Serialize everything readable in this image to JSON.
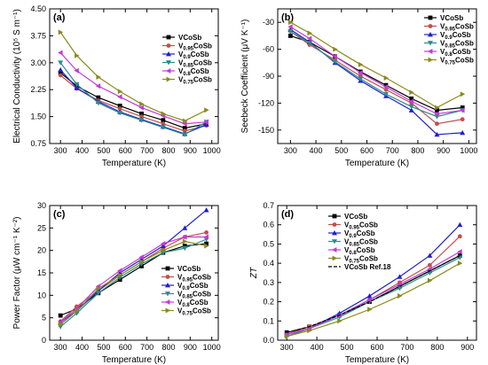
{
  "figure_panels": [
    {
      "key": "a",
      "type": "line",
      "panel_label": "(a)",
      "xlabel": "Temperature (K)",
      "ylabel": "Electrical Conductivity (10⁵ S m⁻¹)",
      "xlim": [
        250,
        1030
      ],
      "ylim": [
        0.75,
        4.5
      ],
      "xticks": [
        300,
        400,
        500,
        600,
        700,
        800,
        900,
        1000
      ],
      "yticks": [
        0.75,
        1.5,
        2.25,
        3.0,
        3.75,
        4.5
      ],
      "ytick_labels": [
        "0.75",
        "1.50",
        "2.25",
        "3.00",
        "3.75",
        "4.50"
      ],
      "legend_position": "top-right",
      "series": [
        {
          "name": "VCoSb",
          "main": "V",
          "sub": "",
          "rest": "CoSb",
          "color": "#000000",
          "marker": "square",
          "x": [
            300,
            375,
            475,
            575,
            675,
            775,
            875,
            975
          ],
          "y": [
            2.72,
            2.35,
            2.03,
            1.8,
            1.58,
            1.4,
            1.18,
            1.3
          ]
        },
        {
          "name": "V0.95CoSb",
          "main": "V",
          "sub": "0.95",
          "rest": "CoSb",
          "color": "#c0504d",
          "marker": "circle",
          "x": [
            300,
            375,
            475,
            575,
            675,
            775,
            875,
            975
          ],
          "y": [
            2.65,
            2.28,
            1.95,
            1.72,
            1.5,
            1.3,
            1.1,
            1.25
          ]
        },
        {
          "name": "V0.9CoSb",
          "main": "V",
          "sub": "0.9",
          "rest": "CoSb",
          "color": "#1f1fd2",
          "marker": "triangle-up",
          "x": [
            300,
            375,
            475,
            575,
            675,
            775,
            875,
            975
          ],
          "y": [
            2.8,
            2.3,
            1.92,
            1.63,
            1.42,
            1.22,
            1.02,
            1.28
          ]
        },
        {
          "name": "V0.85CoSb",
          "main": "V",
          "sub": "0.85",
          "rest": "CoSb",
          "color": "#2a8c8c",
          "marker": "triangle-down",
          "x": [
            300,
            375,
            475,
            575,
            675,
            775,
            875,
            975
          ],
          "y": [
            3.0,
            2.4,
            1.88,
            1.6,
            1.4,
            1.2,
            1.0,
            1.35
          ]
        },
        {
          "name": "V0.8CoSb",
          "main": "V",
          "sub": "0.8",
          "rest": "CoSb",
          "color": "#c43ad8",
          "marker": "triangle-left",
          "x": [
            300,
            375,
            475,
            575,
            675,
            775,
            875,
            975
          ],
          "y": [
            3.28,
            2.78,
            2.35,
            2.05,
            1.75,
            1.52,
            1.3,
            1.35
          ]
        },
        {
          "name": "V0.75CoSb",
          "main": "V",
          "sub": "0.75",
          "rest": "CoSb",
          "color": "#8a8a1c",
          "marker": "triangle-right",
          "x": [
            300,
            375,
            475,
            575,
            675,
            775,
            875,
            975
          ],
          "y": [
            3.85,
            3.2,
            2.6,
            2.2,
            1.85,
            1.58,
            1.38,
            1.68
          ]
        }
      ]
    },
    {
      "key": "b",
      "type": "line",
      "panel_label": "(b)",
      "xlabel": "Temperature (K)",
      "ylabel": "Seebeck Coefficient (μV K⁻¹)",
      "xlim": [
        250,
        1030
      ],
      "ylim": [
        -165,
        -15
      ],
      "xticks": [
        300,
        400,
        500,
        600,
        700,
        800,
        900,
        1000
      ],
      "yticks": [
        -150,
        -120,
        -90,
        -60,
        -30
      ],
      "ytick_labels": [
        "-150",
        "-120",
        "-90",
        "-60",
        "-30"
      ],
      "legend_position": "top-right",
      "series": [
        {
          "name": "VCoSb",
          "main": "V",
          "sub": "",
          "rest": "CoSb",
          "color": "#000000",
          "marker": "square",
          "x": [
            300,
            375,
            475,
            575,
            675,
            775,
            875,
            975
          ],
          "y": [
            -45,
            -52,
            -68,
            -85,
            -100,
            -115,
            -128,
            -125
          ]
        },
        {
          "name": "V0.95CoSb",
          "main": "V",
          "sub": "0.95",
          "rest": "CoSb",
          "color": "#c0504d",
          "marker": "circle",
          "x": [
            300,
            375,
            475,
            575,
            675,
            775,
            875,
            975
          ],
          "y": [
            -40,
            -55,
            -72,
            -90,
            -105,
            -120,
            -143,
            -138
          ]
        },
        {
          "name": "V0.9CoSb",
          "main": "V",
          "sub": "0.9",
          "rest": "CoSb",
          "color": "#1f1fd2",
          "marker": "triangle-up",
          "x": [
            300,
            375,
            475,
            575,
            675,
            775,
            875,
            975
          ],
          "y": [
            -38,
            -52,
            -75,
            -95,
            -112,
            -128,
            -155,
            -153
          ]
        },
        {
          "name": "V0.85CoSb",
          "main": "V",
          "sub": "0.85",
          "rest": "CoSb",
          "color": "#2a8c8c",
          "marker": "triangle-down",
          "x": [
            300,
            375,
            475,
            575,
            675,
            775,
            875,
            975
          ],
          "y": [
            -40,
            -53,
            -74,
            -93,
            -110,
            -124,
            -135,
            -128
          ]
        },
        {
          "name": "V0.8CoSb",
          "main": "V",
          "sub": "0.8",
          "rest": "CoSb",
          "color": "#c43ad8",
          "marker": "triangle-left",
          "x": [
            300,
            375,
            475,
            575,
            675,
            775,
            875,
            975
          ],
          "y": [
            -35,
            -48,
            -68,
            -86,
            -102,
            -118,
            -132,
            -128
          ]
        },
        {
          "name": "V0.75CoSb",
          "main": "V",
          "sub": "0.75",
          "rest": "CoSb",
          "color": "#8a8a1c",
          "marker": "triangle-right",
          "x": [
            300,
            375,
            475,
            575,
            675,
            775,
            875,
            975
          ],
          "y": [
            -30,
            -42,
            -60,
            -77,
            -92,
            -108,
            -125,
            -110
          ]
        }
      ]
    },
    {
      "key": "c",
      "type": "line",
      "panel_label": "(c)",
      "xlabel": "Temperature (K)",
      "ylabel": "Power Factor (μW cm⁻¹ K⁻²)",
      "xlim": [
        250,
        1030
      ],
      "ylim": [
        0,
        30
      ],
      "xticks": [
        300,
        400,
        500,
        600,
        700,
        800,
        900,
        1000
      ],
      "yticks": [
        0,
        5,
        10,
        15,
        20,
        25,
        30
      ],
      "ytick_labels": [
        "0",
        "5",
        "10",
        "15",
        "20",
        "25",
        "30"
      ],
      "legend_position": "bottom-right",
      "series": [
        {
          "name": "VCoSb",
          "main": "V",
          "sub": "",
          "rest": "CoSb",
          "color": "#000000",
          "marker": "square",
          "x": [
            300,
            375,
            475,
            575,
            675,
            775,
            875,
            975
          ],
          "y": [
            5.5,
            7.0,
            10.5,
            13.5,
            16.5,
            19.5,
            21.0,
            21.5
          ]
        },
        {
          "name": "V0.95CoSb",
          "main": "V",
          "sub": "0.95",
          "rest": "CoSb",
          "color": "#c0504d",
          "marker": "circle",
          "x": [
            300,
            375,
            475,
            575,
            675,
            775,
            875,
            975
          ],
          "y": [
            4.2,
            7.5,
            11.0,
            14.5,
            17.5,
            20.5,
            23.0,
            24.0
          ]
        },
        {
          "name": "V0.9CoSb",
          "main": "V",
          "sub": "0.9",
          "rest": "CoSb",
          "color": "#1f1fd2",
          "marker": "triangle-up",
          "x": [
            300,
            375,
            475,
            575,
            675,
            775,
            875,
            975
          ],
          "y": [
            4.0,
            6.5,
            11.0,
            15.0,
            18.0,
            21.0,
            25.0,
            29.0
          ]
        },
        {
          "name": "V0.85CoSb",
          "main": "V",
          "sub": "0.85",
          "rest": "CoSb",
          "color": "#2a8c8c",
          "marker": "triangle-down",
          "x": [
            300,
            375,
            475,
            575,
            675,
            775,
            875,
            975
          ],
          "y": [
            3.0,
            6.0,
            10.5,
            14.0,
            17.0,
            19.5,
            20.5,
            22.5
          ]
        },
        {
          "name": "V0.8CoSb",
          "main": "V",
          "sub": "0.8",
          "rest": "CoSb",
          "color": "#c43ad8",
          "marker": "triangle-left",
          "x": [
            300,
            375,
            475,
            575,
            675,
            775,
            875,
            975
          ],
          "y": [
            4.0,
            7.0,
            12.0,
            15.5,
            18.5,
            21.5,
            23.0,
            23.0
          ]
        },
        {
          "name": "V0.75CoSb",
          "main": "V",
          "sub": "0.75",
          "rest": "CoSb",
          "color": "#8a8a1c",
          "marker": "triangle-right",
          "x": [
            300,
            375,
            475,
            575,
            675,
            775,
            875,
            975
          ],
          "y": [
            3.5,
            6.5,
            11.5,
            14.5,
            17.5,
            20.0,
            22.0,
            21.0
          ]
        }
      ]
    },
    {
      "key": "d",
      "type": "line",
      "panel_label": "(d)",
      "xlabel": "Temperature (K)",
      "ylabel": "ZT",
      "xlim": [
        270,
        930
      ],
      "ylim": [
        0,
        0.7
      ],
      "xticks": [
        300,
        400,
        500,
        600,
        700,
        800,
        900
      ],
      "yticks": [
        0,
        0.1,
        0.2,
        0.3,
        0.4,
        0.5,
        0.6,
        0.7
      ],
      "ytick_labels": [
        "0.0",
        "0.1",
        "0.2",
        "0.3",
        "0.4",
        "0.5",
        "0.6",
        "0.7"
      ],
      "legend_position": "top-left",
      "series": [
        {
          "name": "VCoSb",
          "main": "V",
          "sub": "",
          "rest": "CoSb",
          "color": "#000000",
          "marker": "square",
          "x": [
            300,
            375,
            475,
            575,
            675,
            775,
            875
          ],
          "y": [
            0.04,
            0.07,
            0.13,
            0.2,
            0.28,
            0.36,
            0.44
          ]
        },
        {
          "name": "V0.95CoSb",
          "main": "V",
          "sub": "0.95",
          "rest": "CoSb",
          "color": "#c0504d",
          "marker": "circle",
          "x": [
            300,
            375,
            475,
            575,
            675,
            775,
            875
          ],
          "y": [
            0.03,
            0.07,
            0.13,
            0.21,
            0.3,
            0.39,
            0.54
          ]
        },
        {
          "name": "V0.9CoSb",
          "main": "V",
          "sub": "0.9",
          "rest": "CoSb",
          "color": "#1f1fd2",
          "marker": "triangle-up",
          "x": [
            300,
            375,
            475,
            575,
            675,
            775,
            875
          ],
          "y": [
            0.03,
            0.06,
            0.14,
            0.23,
            0.33,
            0.44,
            0.6
          ]
        },
        {
          "name": "V0.85CoSb",
          "main": "V",
          "sub": "0.85",
          "rest": "CoSb",
          "color": "#2a8c8c",
          "marker": "triangle-down",
          "x": [
            300,
            375,
            475,
            575,
            675,
            775,
            875
          ],
          "y": [
            0.02,
            0.06,
            0.12,
            0.2,
            0.27,
            0.35,
            0.43
          ]
        },
        {
          "name": "V0.8CoSb",
          "main": "V",
          "sub": "0.8",
          "rest": "CoSb",
          "color": "#c43ad8",
          "marker": "triangle-left",
          "x": [
            300,
            375,
            475,
            575,
            675,
            775,
            875
          ],
          "y": [
            0.03,
            0.06,
            0.13,
            0.21,
            0.29,
            0.37,
            0.46
          ]
        },
        {
          "name": "V0.75CoSb",
          "main": "V",
          "sub": "0.75",
          "rest": "CoSb",
          "color": "#8a8a1c",
          "marker": "triangle-right",
          "x": [
            300,
            375,
            475,
            575,
            675,
            775,
            875
          ],
          "y": [
            0.02,
            0.05,
            0.1,
            0.16,
            0.23,
            0.31,
            0.4
          ]
        },
        {
          "name": "VCoSb Ref.18",
          "main": "VCoSb Ref.18",
          "sub": "",
          "rest": "",
          "color": "#000000",
          "marker": "none",
          "dashed": true,
          "x": [
            300,
            375,
            475,
            575,
            675,
            775,
            875
          ],
          "y": [
            0.04,
            0.07,
            0.13,
            0.2,
            0.28,
            0.36,
            0.44
          ]
        }
      ]
    }
  ]
}
